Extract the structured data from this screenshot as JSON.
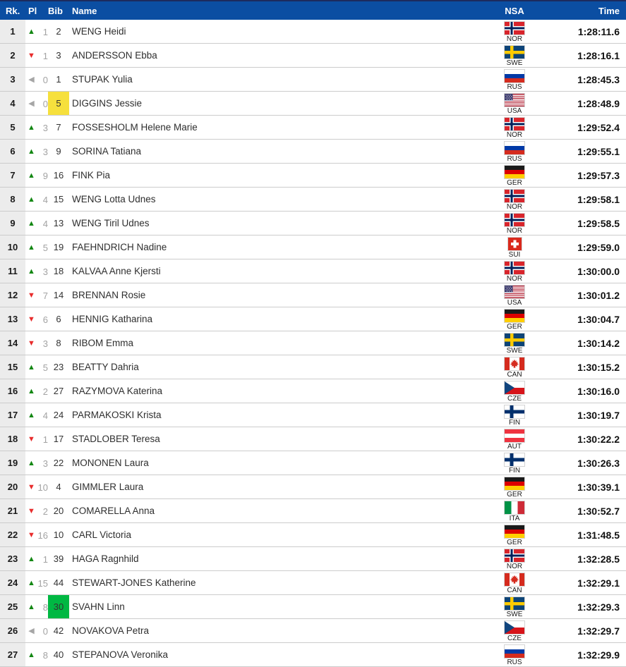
{
  "header": {
    "rk": "Rk.",
    "pl": "Pl",
    "bib": "Bib",
    "name": "Name",
    "nsa": "NSA",
    "time": "Time"
  },
  "icons": {
    "up": "▲",
    "down": "▼",
    "neutral": "◀"
  },
  "colors": {
    "header_bg": "#0b4ea2",
    "header_top_border": "#1c2b5e",
    "rank_col_bg": "#ececec",
    "row_border": "#cccccc",
    "trend_up": "#138713",
    "trend_down": "#e82c2c",
    "trend_neutral": "#a6a6a6",
    "bib_highlight_yellow": "#f6e03d",
    "bib_highlight_green": "#00b843"
  },
  "rows": [
    {
      "rank": "1",
      "trend": "up",
      "pl": "1",
      "bib": "2",
      "highlight": null,
      "name": "WENG Heidi",
      "nsa": "NOR",
      "time": "1:28:11.6"
    },
    {
      "rank": "2",
      "trend": "down",
      "pl": "1",
      "bib": "3",
      "highlight": null,
      "name": "ANDERSSON Ebba",
      "nsa": "SWE",
      "time": "1:28:16.1"
    },
    {
      "rank": "3",
      "trend": "neutral",
      "pl": "0",
      "bib": "1",
      "highlight": null,
      "name": "STUPAK Yulia",
      "nsa": "RUS",
      "time": "1:28:45.3"
    },
    {
      "rank": "4",
      "trend": "neutral",
      "pl": "0",
      "bib": "5",
      "highlight": "yellow",
      "name": "DIGGINS Jessie",
      "nsa": "USA",
      "time": "1:28:48.9"
    },
    {
      "rank": "5",
      "trend": "up",
      "pl": "3",
      "bib": "7",
      "highlight": null,
      "name": "FOSSESHOLM Helene Marie",
      "nsa": "NOR",
      "time": "1:29:52.4"
    },
    {
      "rank": "6",
      "trend": "up",
      "pl": "3",
      "bib": "9",
      "highlight": null,
      "name": "SORINA Tatiana",
      "nsa": "RUS",
      "time": "1:29:55.1"
    },
    {
      "rank": "7",
      "trend": "up",
      "pl": "9",
      "bib": "16",
      "highlight": null,
      "name": "FINK Pia",
      "nsa": "GER",
      "time": "1:29:57.3"
    },
    {
      "rank": "8",
      "trend": "up",
      "pl": "4",
      "bib": "15",
      "highlight": null,
      "name": "WENG Lotta Udnes",
      "nsa": "NOR",
      "time": "1:29:58.1"
    },
    {
      "rank": "9",
      "trend": "up",
      "pl": "4",
      "bib": "13",
      "highlight": null,
      "name": "WENG Tiril Udnes",
      "nsa": "NOR",
      "time": "1:29:58.5"
    },
    {
      "rank": "10",
      "trend": "up",
      "pl": "5",
      "bib": "19",
      "highlight": null,
      "name": "FAEHNDRICH Nadine",
      "nsa": "SUI",
      "time": "1:29:59.0"
    },
    {
      "rank": "11",
      "trend": "up",
      "pl": "3",
      "bib": "18",
      "highlight": null,
      "name": "KALVAA Anne Kjersti",
      "nsa": "NOR",
      "time": "1:30:00.0"
    },
    {
      "rank": "12",
      "trend": "down",
      "pl": "7",
      "bib": "14",
      "highlight": null,
      "name": "BRENNAN Rosie",
      "nsa": "USA",
      "time": "1:30:01.2"
    },
    {
      "rank": "13",
      "trend": "down",
      "pl": "6",
      "bib": "6",
      "highlight": null,
      "name": "HENNIG Katharina",
      "nsa": "GER",
      "time": "1:30:04.7"
    },
    {
      "rank": "14",
      "trend": "down",
      "pl": "3",
      "bib": "8",
      "highlight": null,
      "name": "RIBOM Emma",
      "nsa": "SWE",
      "time": "1:30:14.2"
    },
    {
      "rank": "15",
      "trend": "up",
      "pl": "5",
      "bib": "23",
      "highlight": null,
      "name": "BEATTY Dahria",
      "nsa": "CAN",
      "time": "1:30:15.2"
    },
    {
      "rank": "16",
      "trend": "up",
      "pl": "2",
      "bib": "27",
      "highlight": null,
      "name": "RAZYMOVA Katerina",
      "nsa": "CZE",
      "time": "1:30:16.0"
    },
    {
      "rank": "17",
      "trend": "up",
      "pl": "4",
      "bib": "24",
      "highlight": null,
      "name": "PARMAKOSKI Krista",
      "nsa": "FIN",
      "time": "1:30:19.7"
    },
    {
      "rank": "18",
      "trend": "down",
      "pl": "1",
      "bib": "17",
      "highlight": null,
      "name": "STADLOBER Teresa",
      "nsa": "AUT",
      "time": "1:30:22.2"
    },
    {
      "rank": "19",
      "trend": "up",
      "pl": "3",
      "bib": "22",
      "highlight": null,
      "name": "MONONEN Laura",
      "nsa": "FIN",
      "time": "1:30:26.3"
    },
    {
      "rank": "20",
      "trend": "down",
      "pl": "10",
      "bib": "4",
      "highlight": null,
      "name": "GIMMLER Laura",
      "nsa": "GER",
      "time": "1:30:39.1"
    },
    {
      "rank": "21",
      "trend": "down",
      "pl": "2",
      "bib": "20",
      "highlight": null,
      "name": "COMARELLA Anna",
      "nsa": "ITA",
      "time": "1:30:52.7"
    },
    {
      "rank": "22",
      "trend": "down",
      "pl": "16",
      "bib": "10",
      "highlight": null,
      "name": "CARL Victoria",
      "nsa": "GER",
      "time": "1:31:48.5"
    },
    {
      "rank": "23",
      "trend": "up",
      "pl": "1",
      "bib": "39",
      "highlight": null,
      "name": "HAGA Ragnhild",
      "nsa": "NOR",
      "time": "1:32:28.5"
    },
    {
      "rank": "24",
      "trend": "up",
      "pl": "15",
      "bib": "44",
      "highlight": null,
      "name": "STEWART-JONES Katherine",
      "nsa": "CAN",
      "time": "1:32:29.1"
    },
    {
      "rank": "25",
      "trend": "up",
      "pl": "8",
      "bib": "30",
      "highlight": "green",
      "name": "SVAHN Linn",
      "nsa": "SWE",
      "time": "1:32:29.3"
    },
    {
      "rank": "26",
      "trend": "neutral",
      "pl": "0",
      "bib": "42",
      "highlight": null,
      "name": "NOVAKOVA Petra",
      "nsa": "CZE",
      "time": "1:32:29.7"
    },
    {
      "rank": "27",
      "trend": "up",
      "pl": "8",
      "bib": "40",
      "highlight": null,
      "name": "STEPANOVA Veronika",
      "nsa": "RUS",
      "time": "1:32:29.9"
    }
  ]
}
